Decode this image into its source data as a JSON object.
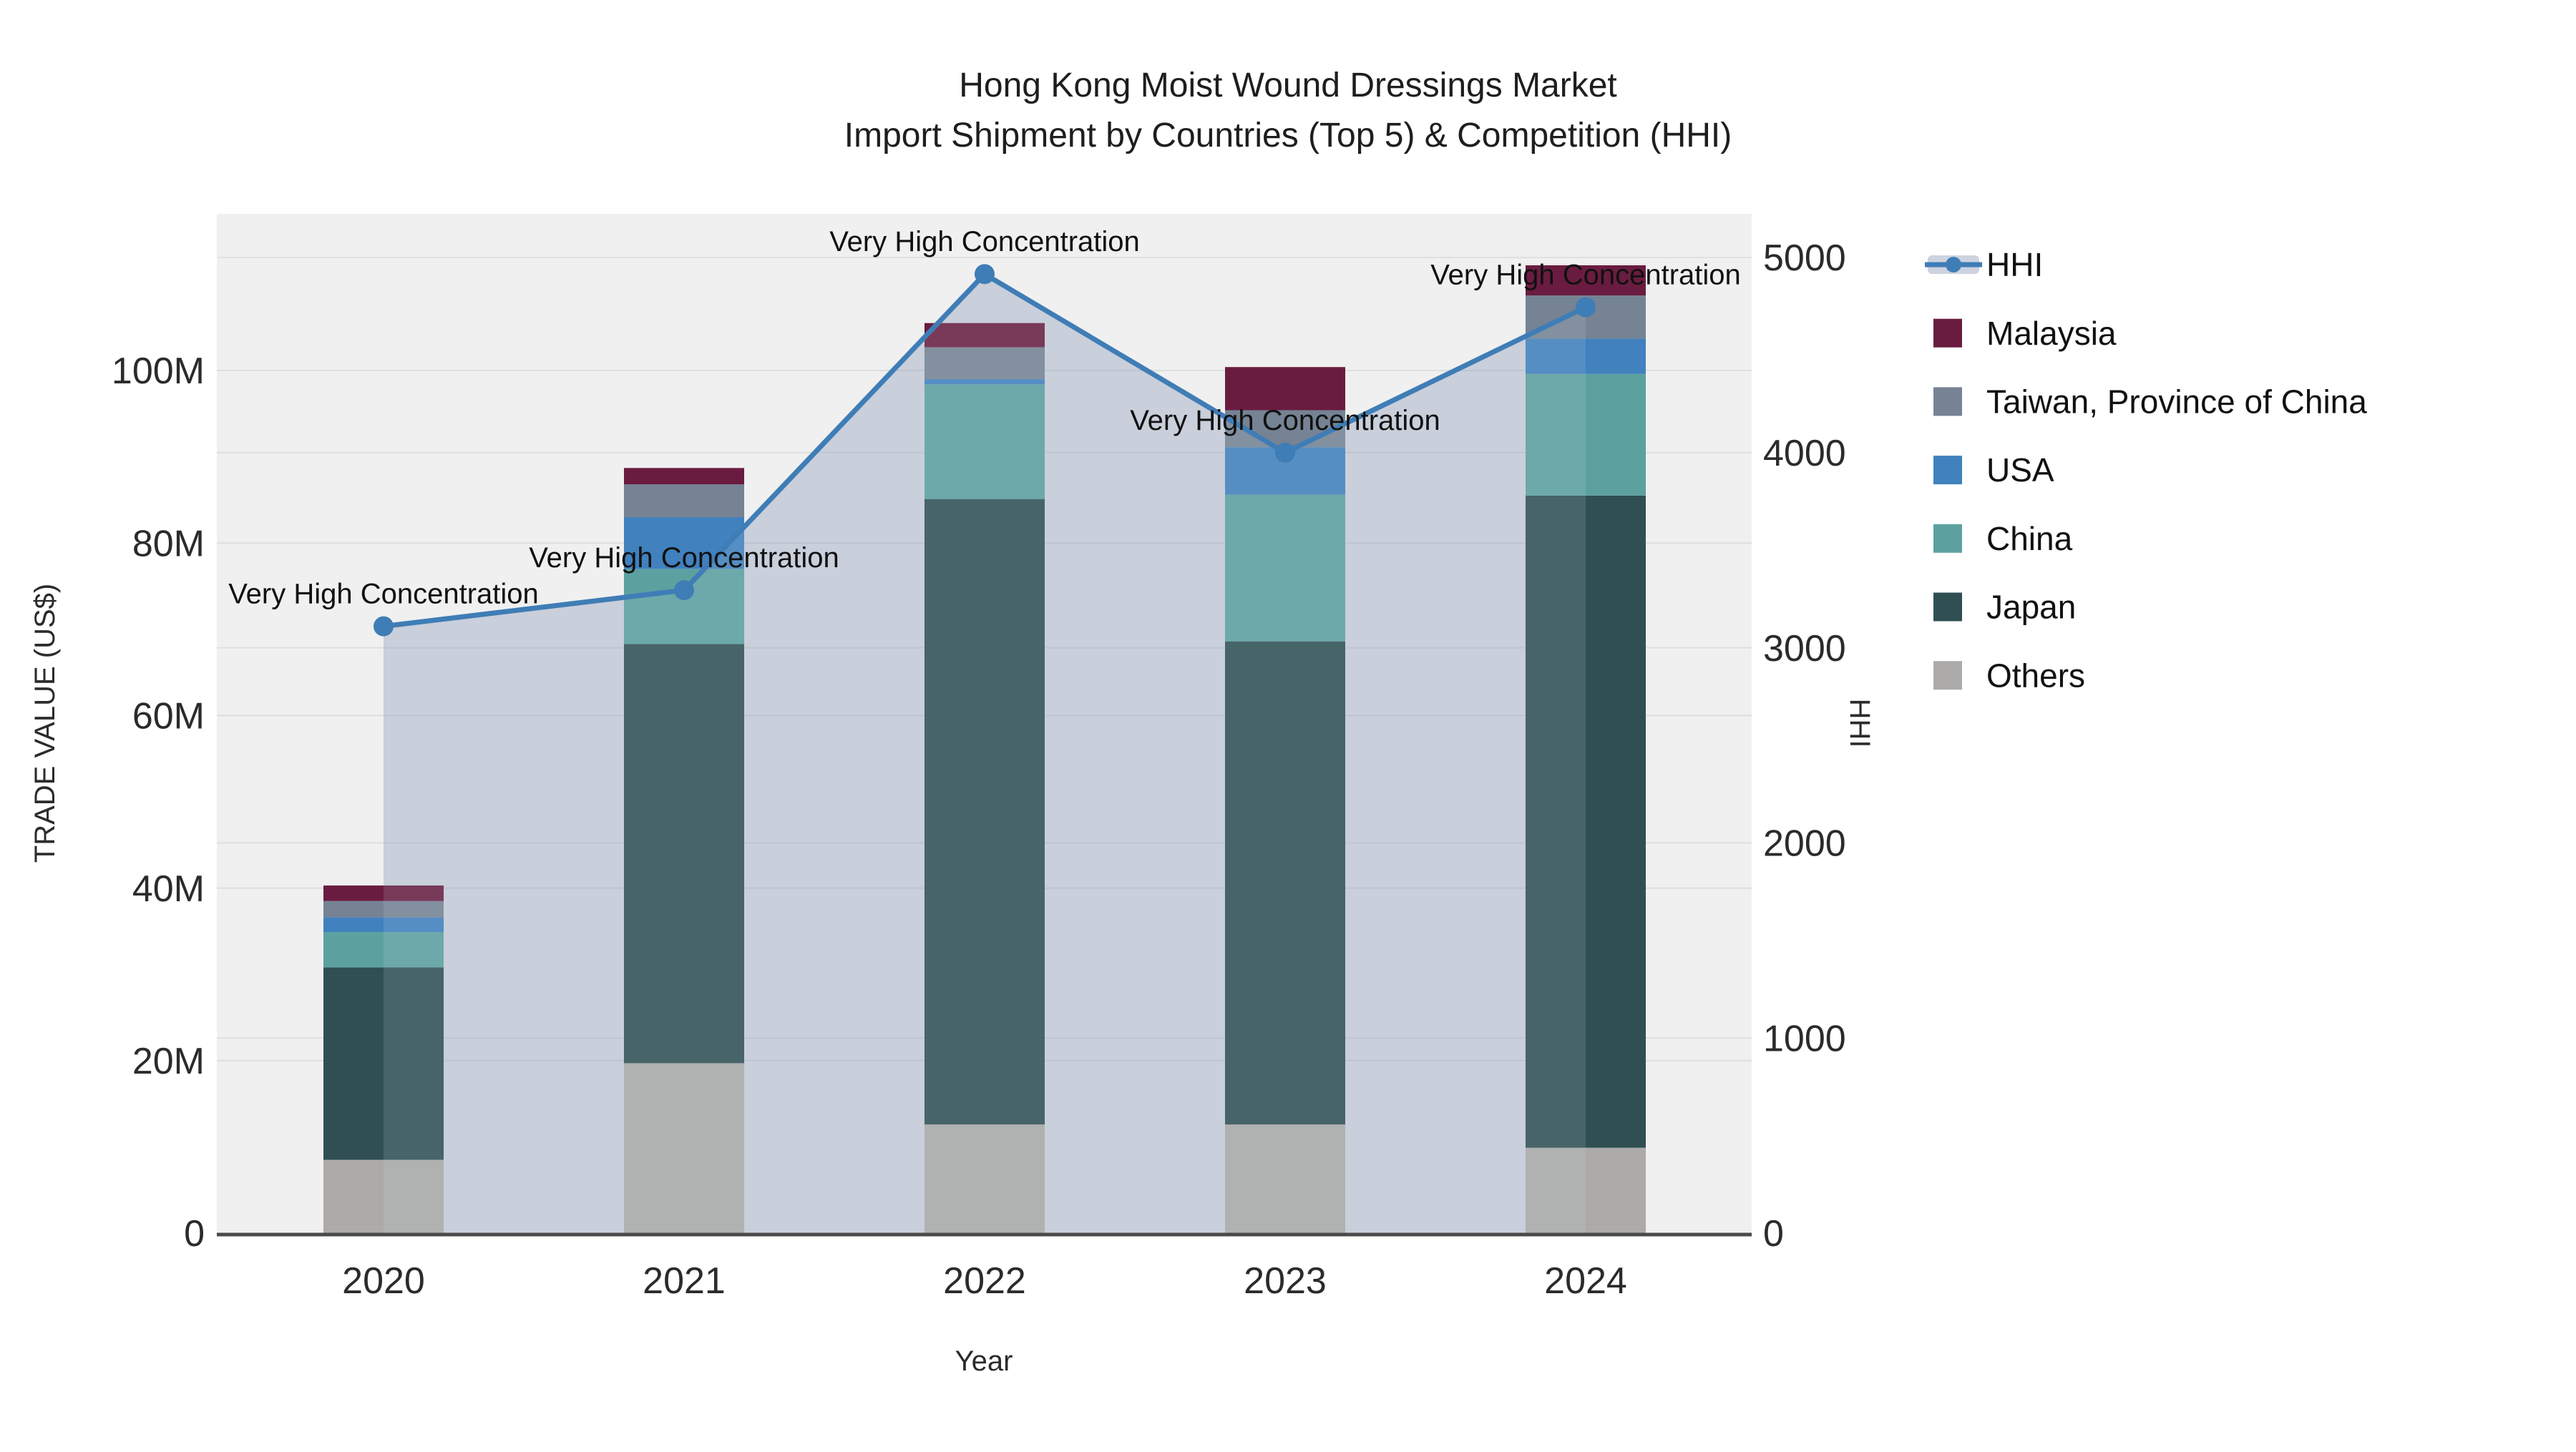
{
  "title": {
    "line1": "Hong Kong Moist Wound Dressings Market",
    "line2": "Import Shipment by Countries (Top 5) & Competition (HHI)"
  },
  "axes": {
    "x_title": "Year",
    "y_left_title": "TRADE VALUE (US$)",
    "y_right_title": "HHI",
    "y_left_tick_labels": [
      "0",
      "20M",
      "40M",
      "60M",
      "80M",
      "100M"
    ],
    "y_left_tick_values_m": [
      0,
      20,
      40,
      60,
      80,
      100
    ],
    "y_right_tick_labels": [
      "0",
      "1000",
      "2000",
      "3000",
      "4000",
      "5000"
    ],
    "y_right_tick_values": [
      0,
      1000,
      2000,
      3000,
      4000,
      5000
    ]
  },
  "chart_data": {
    "type": "combo-stacked-bar-line",
    "categories": [
      "2020",
      "2021",
      "2022",
      "2023",
      "2024"
    ],
    "bar_value_unit": "USD millions",
    "series": [
      {
        "name": "Others",
        "color": "#ACABA9",
        "values": [
          8.5,
          19.7,
          12.6,
          12.6,
          9.9
        ]
      },
      {
        "name": "Japan",
        "color": "#2F4F53",
        "values": [
          22.3,
          48.6,
          72.5,
          56.0,
          75.6
        ]
      },
      {
        "name": "China",
        "color": "#5CA1A0",
        "values": [
          4.1,
          8.7,
          13.3,
          17.0,
          14.1
        ]
      },
      {
        "name": "USA",
        "color": "#4081BE",
        "values": [
          1.7,
          6.0,
          0.6,
          5.5,
          4.1
        ]
      },
      {
        "name": "Taiwan, Province of China",
        "color": "#758394",
        "values": [
          1.9,
          3.8,
          3.7,
          4.3,
          5.0
        ]
      },
      {
        "name": "Malaysia",
        "color": "#6A1C40",
        "values": [
          1.8,
          1.9,
          2.8,
          5.0,
          3.5
        ]
      }
    ],
    "bar_totals_m": [
      40.3,
      88.7,
      105.5,
      100.4,
      112.2
    ],
    "line": {
      "name": "HHI",
      "color": "#3F7DB6",
      "area_fill": "#CACFDB",
      "values": [
        3110,
        3295,
        4915,
        4000,
        4745
      ]
    },
    "annotations": [
      {
        "category": "2020",
        "text": "Very High Concentration"
      },
      {
        "category": "2021",
        "text": "Very High Concentration"
      },
      {
        "category": "2022",
        "text": "Very High Concentration"
      },
      {
        "category": "2023",
        "text": "Very High Concentration"
      },
      {
        "category": "2024",
        "text": "Very High Concentration"
      }
    ],
    "legend": [
      "HHI",
      "Malaysia",
      "Taiwan, Province of China",
      "USA",
      "China",
      "Japan",
      "Others"
    ],
    "y_left_range_m": [
      0,
      118.2
    ],
    "y_right_range": [
      0,
      5000
    ],
    "grid": true,
    "legend_position": "right"
  },
  "colors": {
    "plot_background": "#F0F0F0",
    "figure_background": "#FFFFFF",
    "axis_line": "#4A4A4A",
    "text": "#1E1E1E"
  }
}
